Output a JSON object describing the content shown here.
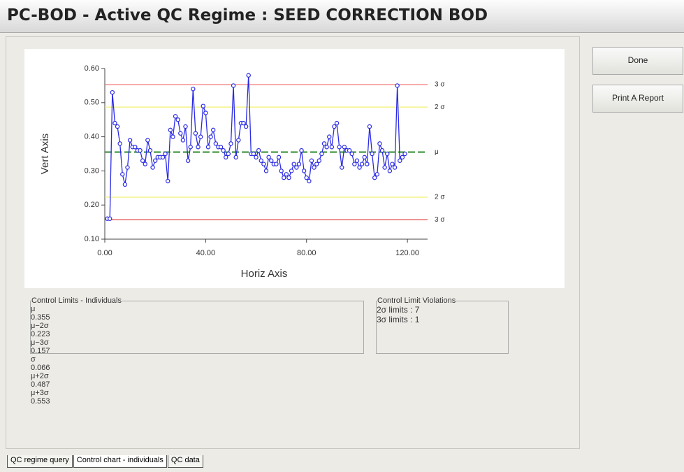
{
  "window": {
    "title": "PC-BOD - Active QC Regime : SEED CORRECTION BOD"
  },
  "buttons": [
    "Done",
    "Print A Report"
  ],
  "chart_data": {
    "type": "line",
    "xlabel": "Horiz Axis",
    "ylabel": "Vert Axis",
    "color": "#2a2ae6",
    "x": [
      1,
      2,
      3,
      4,
      5,
      6,
      7,
      8,
      9,
      10,
      11,
      12,
      13,
      14,
      15,
      16,
      17,
      18,
      19,
      20,
      21,
      22,
      23,
      24,
      25,
      26,
      27,
      28,
      29,
      30,
      31,
      32,
      33,
      34,
      35,
      36,
      37,
      38,
      39,
      40,
      41,
      42,
      43,
      44,
      45,
      46,
      47,
      48,
      49,
      50,
      51,
      52,
      53,
      54,
      55,
      56,
      57,
      58,
      59,
      60,
      61,
      62,
      63,
      64,
      65,
      66,
      67,
      68,
      69,
      70,
      71,
      72,
      73,
      74,
      75,
      76,
      77,
      78,
      79,
      80,
      81,
      82,
      83,
      84,
      85,
      86,
      87,
      88,
      89,
      90,
      91,
      92,
      93,
      94,
      95,
      96,
      97,
      98,
      99,
      100,
      101,
      102,
      103,
      104,
      105,
      106,
      107,
      108,
      109,
      110,
      111,
      112,
      113,
      114,
      115,
      116,
      117,
      118,
      119
    ],
    "values": [
      0.16,
      0.16,
      0.53,
      0.44,
      0.43,
      0.38,
      0.29,
      0.26,
      0.31,
      0.39,
      0.37,
      0.37,
      0.36,
      0.36,
      0.33,
      0.32,
      0.39,
      0.36,
      0.31,
      0.33,
      0.34,
      0.34,
      0.34,
      0.35,
      0.27,
      0.42,
      0.4,
      0.46,
      0.45,
      0.41,
      0.39,
      0.43,
      0.33,
      0.37,
      0.54,
      0.41,
      0.37,
      0.4,
      0.49,
      0.47,
      0.37,
      0.4,
      0.42,
      0.38,
      0.37,
      0.37,
      0.36,
      0.34,
      0.35,
      0.38,
      0.55,
      0.34,
      0.39,
      0.44,
      0.44,
      0.43,
      0.58,
      0.35,
      0.35,
      0.34,
      0.36,
      0.33,
      0.32,
      0.3,
      0.34,
      0.33,
      0.32,
      0.32,
      0.34,
      0.3,
      0.28,
      0.29,
      0.28,
      0.3,
      0.32,
      0.31,
      0.32,
      0.36,
      0.3,
      0.28,
      0.27,
      0.33,
      0.31,
      0.32,
      0.33,
      0.35,
      0.38,
      0.37,
      0.4,
      0.37,
      0.43,
      0.44,
      0.37,
      0.31,
      0.37,
      0.36,
      0.36,
      0.35,
      0.32,
      0.33,
      0.31,
      0.32,
      0.34,
      0.32,
      0.43,
      0.35,
      0.28,
      0.29,
      0.38,
      0.36,
      0.31,
      0.35,
      0.3,
      0.32,
      0.31,
      0.55,
      0.33,
      0.34,
      0.35
    ],
    "xlim": [
      0,
      128
    ],
    "xticks": [
      {
        "value": 0,
        "label": "0.00"
      },
      {
        "value": 40,
        "label": "40.00"
      },
      {
        "value": 80,
        "label": "80.00"
      },
      {
        "value": 120,
        "label": "120.00"
      }
    ],
    "ylim": [
      0.1,
      0.6
    ],
    "yticks": [
      {
        "value": 0.1,
        "label": "0.10"
      },
      {
        "value": 0.2,
        "label": "0.20"
      },
      {
        "value": 0.3,
        "label": "0.30"
      },
      {
        "value": 0.4,
        "label": "0.40"
      },
      {
        "value": 0.5,
        "label": "0.50"
      },
      {
        "value": 0.6,
        "label": "0.60"
      }
    ],
    "limits": [
      {
        "label": "3 σ",
        "value": 0.553,
        "color": "#f07070"
      },
      {
        "label": "2 σ",
        "value": 0.487,
        "color": "#f0f070"
      },
      {
        "label": "μ",
        "value": 0.355,
        "color": "#2e8b2e"
      },
      {
        "label": "2 σ",
        "value": 0.223,
        "color": "#f0f070"
      },
      {
        "label": "3 σ",
        "value": 0.157,
        "color": "#e03030"
      }
    ]
  },
  "control_limits": {
    "title": "Control Limits - Individuals",
    "rows": [
      [
        "μ",
        "0.355",
        "μ−2σ",
        "0.223",
        "μ−3σ",
        "0.157"
      ],
      [
        "σ",
        "0.066",
        "μ+2σ",
        "0.487",
        "μ+3σ",
        "0.553"
      ]
    ]
  },
  "violations": {
    "title": "Control Limit Violations",
    "rows": [
      "2σ limits : 7",
      "3σ limits : 1"
    ]
  },
  "tabs": [
    "QC regime query",
    "Control chart - individuals",
    "QC data"
  ]
}
